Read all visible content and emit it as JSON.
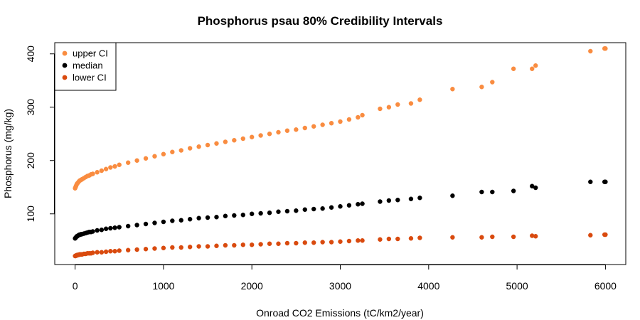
{
  "chart_data": {
    "type": "scatter",
    "title": "Phosphorus psau 80% Credibility Intervals",
    "xlabel": "Onroad CO2 Emissions (tC/km2/year)",
    "ylabel": "Phosphorus (mg/kg)",
    "xlim": [
      -230,
      6230
    ],
    "ylim": [
      5,
      421
    ],
    "xticks": [
      0,
      1000,
      2000,
      3000,
      4000,
      5000,
      6000
    ],
    "yticks": [
      100,
      200,
      300,
      400
    ],
    "grid": false,
    "legend": {
      "position": "top-left",
      "entries": [
        {
          "label": "upper CI",
          "color": "#F98C40"
        },
        {
          "label": "median",
          "color": "#000000"
        },
        {
          "label": "lower CI",
          "color": "#D94A0E"
        }
      ]
    },
    "x": [
      0,
      5,
      10,
      15,
      20,
      25,
      30,
      40,
      50,
      60,
      70,
      80,
      100,
      120,
      140,
      160,
      180,
      200,
      250,
      300,
      350,
      400,
      450,
      500,
      600,
      700,
      800,
      900,
      1000,
      1100,
      1200,
      1300,
      1400,
      1500,
      1600,
      1700,
      1800,
      1900,
      2000,
      2100,
      2200,
      2300,
      2400,
      2500,
      2600,
      2700,
      2800,
      2900,
      3000,
      3100,
      3200,
      3250,
      3450,
      3550,
      3650,
      3800,
      3900,
      4270,
      4600,
      4720,
      4960,
      5170,
      5210,
      5830,
      5990,
      6000
    ],
    "series": [
      {
        "name": "upper CI",
        "color": "#F98C40",
        "values": [
          148,
          150,
          152,
          154,
          156,
          157,
          158,
          160,
          162,
          163,
          164,
          165,
          167,
          169,
          171,
          172,
          174,
          175,
          178,
          181,
          184,
          187,
          189,
          192,
          196,
          200,
          204,
          208,
          212,
          216,
          219,
          223,
          226,
          229,
          232,
          235,
          238,
          241,
          244,
          247,
          250,
          253,
          256,
          258,
          261,
          264,
          267,
          270,
          273,
          277,
          281,
          285,
          297,
          300,
          305,
          307,
          314,
          334,
          338,
          347,
          372,
          372,
          378,
          405,
          410,
          410
        ]
      },
      {
        "name": "median",
        "color": "#000000",
        "values": [
          54,
          55,
          56,
          57,
          58,
          58,
          59,
          60,
          61,
          61,
          62,
          62,
          63,
          64,
          65,
          66,
          66,
          67,
          69,
          70,
          72,
          73,
          74,
          75,
          77,
          79,
          81,
          83,
          85,
          87,
          88,
          90,
          92,
          93,
          94,
          96,
          97,
          98,
          100,
          101,
          102,
          104,
          105,
          106,
          108,
          109,
          110,
          112,
          114,
          116,
          118,
          119,
          123,
          125,
          126,
          128,
          130,
          134,
          141,
          141,
          143,
          152,
          149,
          160,
          160,
          160
        ]
      },
      {
        "name": "lower CI",
        "color": "#D94A0E",
        "values": [
          21,
          21,
          22,
          22,
          22,
          23,
          23,
          23,
          24,
          24,
          24,
          24,
          25,
          25,
          26,
          26,
          26,
          27,
          28,
          28,
          29,
          30,
          30,
          31,
          32,
          33,
          34,
          35,
          36,
          37,
          37,
          38,
          39,
          39,
          40,
          41,
          41,
          42,
          42,
          43,
          44,
          44,
          45,
          45,
          46,
          46,
          47,
          47,
          48,
          49,
          50,
          50,
          52,
          53,
          53,
          54,
          55,
          56,
          56,
          57,
          57,
          59,
          58,
          60,
          61,
          61
        ]
      }
    ]
  }
}
